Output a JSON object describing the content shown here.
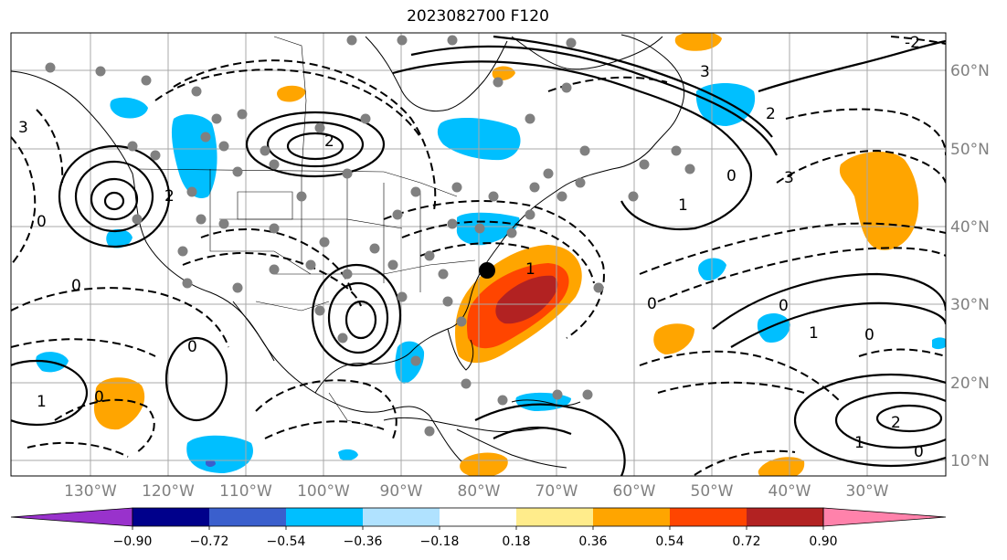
{
  "title": "2023082700 F120",
  "lon_labels": [
    "130°W",
    "120°W",
    "110°W",
    "100°W",
    "90°W",
    "80°W",
    "70°W",
    "60°W",
    "50°W",
    "40°W",
    "30°W"
  ],
  "lat_labels": [
    "60°N",
    "50°N",
    "40°N",
    "30°N",
    "20°N",
    "10°N"
  ],
  "colorbar": {
    "ticks": [
      "−0.90",
      "−0.72",
      "−0.54",
      "−0.36",
      "−0.18",
      "0.18",
      "0.36",
      "0.54",
      "0.72",
      "0.90"
    ],
    "colors": [
      "#9932cc",
      "#00008b",
      "#3a5fcd",
      "#00bfff",
      "#b0e2ff",
      "#ffffff",
      "#ffec8b",
      "#ffa500",
      "#ff4500",
      "#b22222",
      "#ff82ab"
    ]
  },
  "contour_labels": [
    "3",
    "2",
    "1",
    "0",
    "-2"
  ]
}
